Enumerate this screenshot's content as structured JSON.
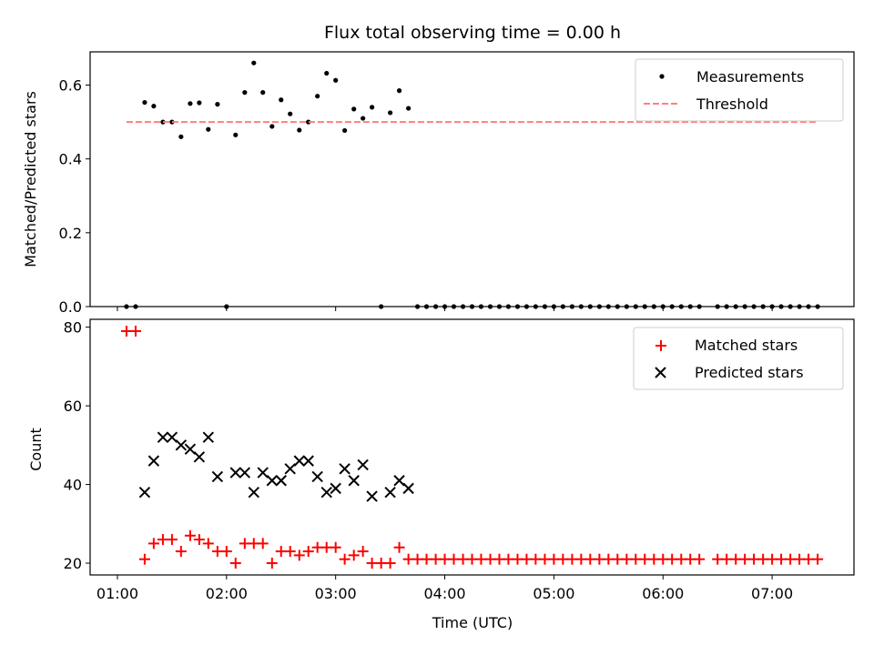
{
  "chart_data": [
    {
      "panel": "top",
      "type": "scatter",
      "title": "Flux total observing time = 0.00 h",
      "xlabel": "",
      "ylabel": "Matched/Predicted stars",
      "x_unit": "hours UTC",
      "xlim": [
        0.75,
        7.75
      ],
      "ylim": [
        0.0,
        0.69
      ],
      "yticks": [
        0.0,
        0.2,
        0.4,
        0.6
      ],
      "ytick_labels": [
        "0.0",
        "0.2",
        "0.4",
        "0.6"
      ],
      "xticks": [
        1,
        2,
        3,
        4,
        5,
        6,
        7
      ],
      "grid": false,
      "legend": {
        "position": "top-right",
        "entries": [
          "Measurements",
          "Threshold"
        ]
      },
      "series": [
        {
          "name": "Measurements",
          "marker": "dot",
          "color": "#000000",
          "points": [
            [
              1.083,
              0.0
            ],
            [
              1.167,
              0.0
            ],
            [
              1.25,
              0.553
            ],
            [
              1.333,
              0.543
            ],
            [
              1.417,
              0.5
            ],
            [
              1.5,
              0.5
            ],
            [
              1.583,
              0.46
            ],
            [
              1.667,
              0.55
            ],
            [
              1.75,
              0.552
            ],
            [
              1.833,
              0.48
            ],
            [
              1.917,
              0.548
            ],
            [
              2.0,
              0.0
            ],
            [
              2.083,
              0.465
            ],
            [
              2.167,
              0.58
            ],
            [
              2.25,
              0.66
            ],
            [
              2.333,
              0.58
            ],
            [
              2.417,
              0.488
            ],
            [
              2.5,
              0.56
            ],
            [
              2.583,
              0.522
            ],
            [
              2.667,
              0.478
            ],
            [
              2.75,
              0.5
            ],
            [
              2.833,
              0.57
            ],
            [
              2.917,
              0.632
            ],
            [
              3.0,
              0.613
            ],
            [
              3.083,
              0.477
            ],
            [
              3.167,
              0.535
            ],
            [
              3.25,
              0.51
            ],
            [
              3.333,
              0.54
            ],
            [
              3.417,
              0.0
            ],
            [
              3.5,
              0.525
            ],
            [
              3.583,
              0.585
            ],
            [
              3.667,
              0.537
            ],
            [
              3.75,
              0.0
            ],
            [
              3.833,
              0.0
            ],
            [
              3.917,
              0.0
            ],
            [
              4.0,
              0.0
            ],
            [
              4.083,
              0.0
            ],
            [
              4.167,
              0.0
            ],
            [
              4.25,
              0.0
            ],
            [
              4.333,
              0.0
            ],
            [
              4.417,
              0.0
            ],
            [
              4.5,
              0.0
            ],
            [
              4.583,
              0.0
            ],
            [
              4.667,
              0.0
            ],
            [
              4.75,
              0.0
            ],
            [
              4.833,
              0.0
            ],
            [
              4.917,
              0.0
            ],
            [
              5.0,
              0.0
            ],
            [
              5.083,
              0.0
            ],
            [
              5.167,
              0.0
            ],
            [
              5.25,
              0.0
            ],
            [
              5.333,
              0.0
            ],
            [
              5.417,
              0.0
            ],
            [
              5.5,
              0.0
            ],
            [
              5.583,
              0.0
            ],
            [
              5.667,
              0.0
            ],
            [
              5.75,
              0.0
            ],
            [
              5.833,
              0.0
            ],
            [
              5.917,
              0.0
            ],
            [
              6.0,
              0.0
            ],
            [
              6.083,
              0.0
            ],
            [
              6.167,
              0.0
            ],
            [
              6.25,
              0.0
            ],
            [
              6.333,
              0.0
            ],
            [
              6.5,
              0.0
            ],
            [
              6.583,
              0.0
            ],
            [
              6.667,
              0.0
            ],
            [
              6.75,
              0.0
            ],
            [
              6.833,
              0.0
            ],
            [
              6.917,
              0.0
            ],
            [
              7.0,
              0.0
            ],
            [
              7.083,
              0.0
            ],
            [
              7.167,
              0.0
            ],
            [
              7.25,
              0.0
            ],
            [
              7.333,
              0.0
            ],
            [
              7.417,
              0.0
            ]
          ]
        },
        {
          "name": "Threshold",
          "style": "dashed-line",
          "color": "#ff7f7f",
          "x": [
            1.083,
            7.417
          ],
          "y": [
            0.5,
            0.5
          ]
        }
      ]
    },
    {
      "panel": "bottom",
      "type": "scatter",
      "title": "",
      "xlabel": "Time (UTC)",
      "ylabel": "Count",
      "x_unit": "hours UTC",
      "xlim": [
        0.75,
        7.75
      ],
      "ylim": [
        17,
        82
      ],
      "yticks": [
        20,
        40,
        60,
        80
      ],
      "ytick_labels": [
        "20",
        "40",
        "60",
        "80"
      ],
      "xticks": [
        1,
        2,
        3,
        4,
        5,
        6,
        7
      ],
      "xtick_labels": [
        "01:00",
        "02:00",
        "03:00",
        "04:00",
        "05:00",
        "06:00",
        "07:00"
      ],
      "grid": false,
      "legend": {
        "position": "top-right",
        "entries": [
          "Matched stars",
          "Predicted stars"
        ]
      },
      "series": [
        {
          "name": "Matched stars",
          "marker": "plus",
          "color": "#ff0000",
          "points": [
            [
              1.083,
              79
            ],
            [
              1.167,
              79
            ],
            [
              1.25,
              21
            ],
            [
              1.333,
              25
            ],
            [
              1.417,
              26
            ],
            [
              1.5,
              26
            ],
            [
              1.583,
              23
            ],
            [
              1.667,
              27
            ],
            [
              1.75,
              26
            ],
            [
              1.833,
              25
            ],
            [
              1.917,
              23
            ],
            [
              2.0,
              23
            ],
            [
              2.083,
              20
            ],
            [
              2.167,
              25
            ],
            [
              2.25,
              25
            ],
            [
              2.333,
              25
            ],
            [
              2.417,
              20
            ],
            [
              2.5,
              23
            ],
            [
              2.583,
              23
            ],
            [
              2.667,
              22
            ],
            [
              2.75,
              23
            ],
            [
              2.833,
              24
            ],
            [
              2.917,
              24
            ],
            [
              3.0,
              24
            ],
            [
              3.083,
              21
            ],
            [
              3.167,
              22
            ],
            [
              3.25,
              23
            ],
            [
              3.333,
              20
            ],
            [
              3.417,
              20
            ],
            [
              3.5,
              20
            ],
            [
              3.583,
              24
            ],
            [
              3.667,
              21
            ],
            [
              3.75,
              21
            ],
            [
              3.833,
              21
            ],
            [
              3.917,
              21
            ],
            [
              4.0,
              21
            ],
            [
              4.083,
              21
            ],
            [
              4.167,
              21
            ],
            [
              4.25,
              21
            ],
            [
              4.333,
              21
            ],
            [
              4.417,
              21
            ],
            [
              4.5,
              21
            ],
            [
              4.583,
              21
            ],
            [
              4.667,
              21
            ],
            [
              4.75,
              21
            ],
            [
              4.833,
              21
            ],
            [
              4.917,
              21
            ],
            [
              5.0,
              21
            ],
            [
              5.083,
              21
            ],
            [
              5.167,
              21
            ],
            [
              5.25,
              21
            ],
            [
              5.333,
              21
            ],
            [
              5.417,
              21
            ],
            [
              5.5,
              21
            ],
            [
              5.583,
              21
            ],
            [
              5.667,
              21
            ],
            [
              5.75,
              21
            ],
            [
              5.833,
              21
            ],
            [
              5.917,
              21
            ],
            [
              6.0,
              21
            ],
            [
              6.083,
              21
            ],
            [
              6.167,
              21
            ],
            [
              6.25,
              21
            ],
            [
              6.333,
              21
            ],
            [
              6.5,
              21
            ],
            [
              6.583,
              21
            ],
            [
              6.667,
              21
            ],
            [
              6.75,
              21
            ],
            [
              6.833,
              21
            ],
            [
              6.917,
              21
            ],
            [
              7.0,
              21
            ],
            [
              7.083,
              21
            ],
            [
              7.167,
              21
            ],
            [
              7.25,
              21
            ],
            [
              7.333,
              21
            ],
            [
              7.417,
              21
            ]
          ]
        },
        {
          "name": "Predicted stars",
          "marker": "x",
          "color": "#000000",
          "points": [
            [
              1.25,
              38
            ],
            [
              1.333,
              46
            ],
            [
              1.417,
              52
            ],
            [
              1.5,
              52
            ],
            [
              1.583,
              50
            ],
            [
              1.667,
              49
            ],
            [
              1.75,
              47
            ],
            [
              1.833,
              52
            ],
            [
              1.917,
              42
            ],
            [
              2.083,
              43
            ],
            [
              2.167,
              43
            ],
            [
              2.25,
              38
            ],
            [
              2.333,
              43
            ],
            [
              2.417,
              41
            ],
            [
              2.5,
              41
            ],
            [
              2.583,
              44
            ],
            [
              2.667,
              46
            ],
            [
              2.75,
              46
            ],
            [
              2.833,
              42
            ],
            [
              2.917,
              38
            ],
            [
              3.0,
              39
            ],
            [
              3.083,
              44
            ],
            [
              3.167,
              41
            ],
            [
              3.25,
              45
            ],
            [
              3.333,
              37
            ],
            [
              3.5,
              38
            ],
            [
              3.583,
              41
            ],
            [
              3.667,
              39
            ]
          ]
        }
      ]
    }
  ]
}
